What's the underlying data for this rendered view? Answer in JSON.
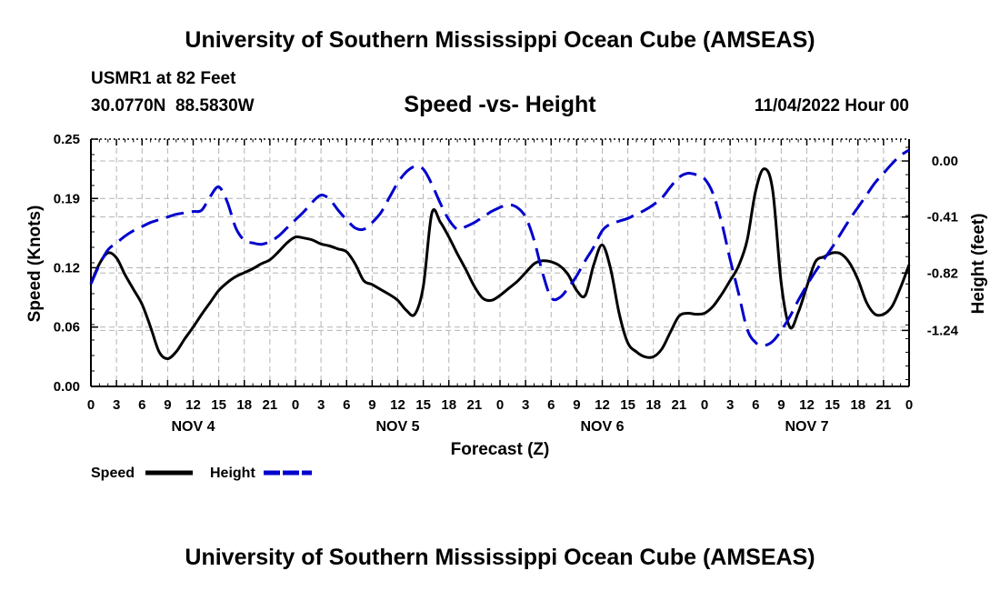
{
  "header": {
    "title": "University of Southern Mississippi Ocean Cube (AMSEAS)",
    "station": "USMR1 at 82 Feet",
    "coords": "30.0770N  88.5830W",
    "subtitle": "Speed -vs- Height",
    "datetime": "11/04/2022 Hour 00"
  },
  "footer": {
    "title": "University of Southern Mississippi Ocean Cube (AMSEAS)"
  },
  "chart_data": {
    "type": "line",
    "title": "Speed -vs- Height",
    "xlabel": "Forecast (Z)",
    "ylabel": "Speed (Knots)",
    "ylabel_right": "Height (feet)",
    "x_unit": "hours from 11/04/2022 00Z",
    "x_ticks": [
      0,
      3,
      6,
      9,
      12,
      15,
      18,
      21,
      24,
      27,
      30,
      33,
      36,
      39,
      42,
      45,
      48,
      51,
      54,
      57,
      60,
      63,
      66,
      69,
      72,
      75,
      78,
      81,
      84,
      87,
      90,
      93,
      96
    ],
    "x_tick_labels": [
      "0",
      "3",
      "6",
      "9",
      "12",
      "15",
      "18",
      "21",
      "0",
      "3",
      "6",
      "9",
      "12",
      "15",
      "18",
      "21",
      "0",
      "3",
      "6",
      "9",
      "12",
      "15",
      "18",
      "21",
      "0",
      "3",
      "6",
      "9",
      "12",
      "15",
      "18",
      "21",
      "0"
    ],
    "day_labels": [
      {
        "label": "NOV 4",
        "x": 12
      },
      {
        "label": "NOV 5",
        "x": 36
      },
      {
        "label": "NOV 6",
        "x": 60
      },
      {
        "label": "NOV 7",
        "x": 84
      }
    ],
    "xlim": [
      0,
      96
    ],
    "ylim": [
      0,
      0.25
    ],
    "y_ticks": [
      0,
      0.06,
      0.12,
      0.19,
      0.25
    ],
    "y_tick_labels": [
      "0.00",
      "0.06",
      "0.12",
      "0.19",
      "0.25"
    ],
    "ylim_right": [
      -1.65,
      0.16
    ],
    "y_ticks_right": [
      0.0,
      -0.41,
      -0.82,
      -1.24
    ],
    "y_tick_labels_right": [
      "0.00",
      "-0.41",
      "-0.82",
      "-1.24"
    ],
    "legend": [
      {
        "name": "Speed",
        "color": "#000000",
        "dash": "solid"
      },
      {
        "name": "Height",
        "color": "#0000cc",
        "dash": "dashed"
      }
    ],
    "series": [
      {
        "name": "Speed",
        "axis": "left",
        "color": "#000000",
        "x": [
          0,
          1,
          2,
          3,
          4,
          5,
          6,
          7,
          8,
          9,
          10,
          11,
          12,
          13,
          14,
          15,
          16,
          17,
          18,
          19,
          20,
          21,
          22,
          23,
          24,
          25,
          26,
          27,
          28,
          29,
          30,
          31,
          32,
          33,
          34,
          35,
          36,
          37,
          38,
          39,
          40,
          41,
          42,
          43,
          44,
          45,
          46,
          47,
          48,
          49,
          50,
          51,
          52,
          53,
          54,
          55,
          56,
          57,
          58,
          59,
          60,
          61,
          62,
          63,
          64,
          65,
          66,
          67,
          68,
          69,
          70,
          71,
          72,
          73,
          74,
          75,
          76,
          77,
          78,
          79,
          80,
          81,
          82,
          83,
          84,
          85,
          86,
          87,
          88,
          89,
          90,
          91,
          92,
          93,
          94,
          95,
          96
        ],
        "values": [
          0.104,
          0.124,
          0.135,
          0.13,
          0.113,
          0.098,
          0.083,
          0.06,
          0.035,
          0.028,
          0.035,
          0.048,
          0.06,
          0.073,
          0.085,
          0.097,
          0.105,
          0.111,
          0.115,
          0.119,
          0.124,
          0.128,
          0.136,
          0.145,
          0.151,
          0.15,
          0.148,
          0.144,
          0.142,
          0.139,
          0.136,
          0.124,
          0.107,
          0.103,
          0.098,
          0.093,
          0.087,
          0.077,
          0.073,
          0.101,
          0.175,
          0.166,
          0.151,
          0.134,
          0.118,
          0.101,
          0.089,
          0.087,
          0.092,
          0.099,
          0.106,
          0.115,
          0.124,
          0.127,
          0.126,
          0.122,
          0.113,
          0.097,
          0.092,
          0.123,
          0.143,
          0.118,
          0.073,
          0.044,
          0.035,
          0.03,
          0.03,
          0.038,
          0.055,
          0.071,
          0.074,
          0.073,
          0.074,
          0.081,
          0.093,
          0.107,
          0.122,
          0.148,
          0.198,
          0.22,
          0.198,
          0.104,
          0.06,
          0.075,
          0.101,
          0.126,
          0.131,
          0.135,
          0.134,
          0.125,
          0.108,
          0.085,
          0.073,
          0.073,
          0.081,
          0.1,
          0.123
        ]
      },
      {
        "name": "Height",
        "axis": "right",
        "color": "#0000cc",
        "x": [
          0,
          1,
          2,
          3,
          4,
          5,
          6,
          7,
          8,
          9,
          10,
          11,
          12,
          13,
          14,
          15,
          16,
          17,
          18,
          19,
          20,
          21,
          22,
          23,
          24,
          25,
          26,
          27,
          28,
          29,
          30,
          31,
          32,
          33,
          34,
          35,
          36,
          37,
          38,
          39,
          40,
          41,
          42,
          43,
          44,
          45,
          46,
          47,
          48,
          49,
          50,
          51,
          52,
          53,
          54,
          55,
          56,
          57,
          58,
          59,
          60,
          61,
          62,
          63,
          64,
          65,
          66,
          67,
          68,
          69,
          70,
          71,
          72,
          73,
          74,
          75,
          76,
          77,
          78,
          79,
          80,
          81,
          82,
          83,
          84,
          85,
          86,
          87,
          88,
          89,
          90,
          91,
          92,
          93,
          94,
          95,
          96
        ],
        "values": [
          -0.9,
          -0.76,
          -0.65,
          -0.6,
          -0.55,
          -0.51,
          -0.48,
          -0.45,
          -0.43,
          -0.41,
          -0.39,
          -0.38,
          -0.37,
          -0.36,
          -0.26,
          -0.19,
          -0.3,
          -0.49,
          -0.58,
          -0.6,
          -0.61,
          -0.59,
          -0.55,
          -0.49,
          -0.43,
          -0.37,
          -0.3,
          -0.25,
          -0.28,
          -0.36,
          -0.43,
          -0.49,
          -0.5,
          -0.45,
          -0.38,
          -0.27,
          -0.16,
          -0.08,
          -0.04,
          -0.06,
          -0.17,
          -0.31,
          -0.43,
          -0.5,
          -0.48,
          -0.45,
          -0.41,
          -0.37,
          -0.34,
          -0.32,
          -0.34,
          -0.41,
          -0.58,
          -0.82,
          -1.0,
          -1.0,
          -0.93,
          -0.84,
          -0.73,
          -0.63,
          -0.51,
          -0.46,
          -0.44,
          -0.42,
          -0.39,
          -0.36,
          -0.32,
          -0.27,
          -0.19,
          -0.12,
          -0.09,
          -0.1,
          -0.13,
          -0.24,
          -0.45,
          -0.72,
          -0.97,
          -1.23,
          -1.33,
          -1.35,
          -1.32,
          -1.24,
          -1.14,
          -1.02,
          -0.91,
          -0.81,
          -0.72,
          -0.63,
          -0.53,
          -0.43,
          -0.34,
          -0.25,
          -0.16,
          -0.09,
          -0.02,
          0.04,
          0.08
        ]
      }
    ]
  }
}
